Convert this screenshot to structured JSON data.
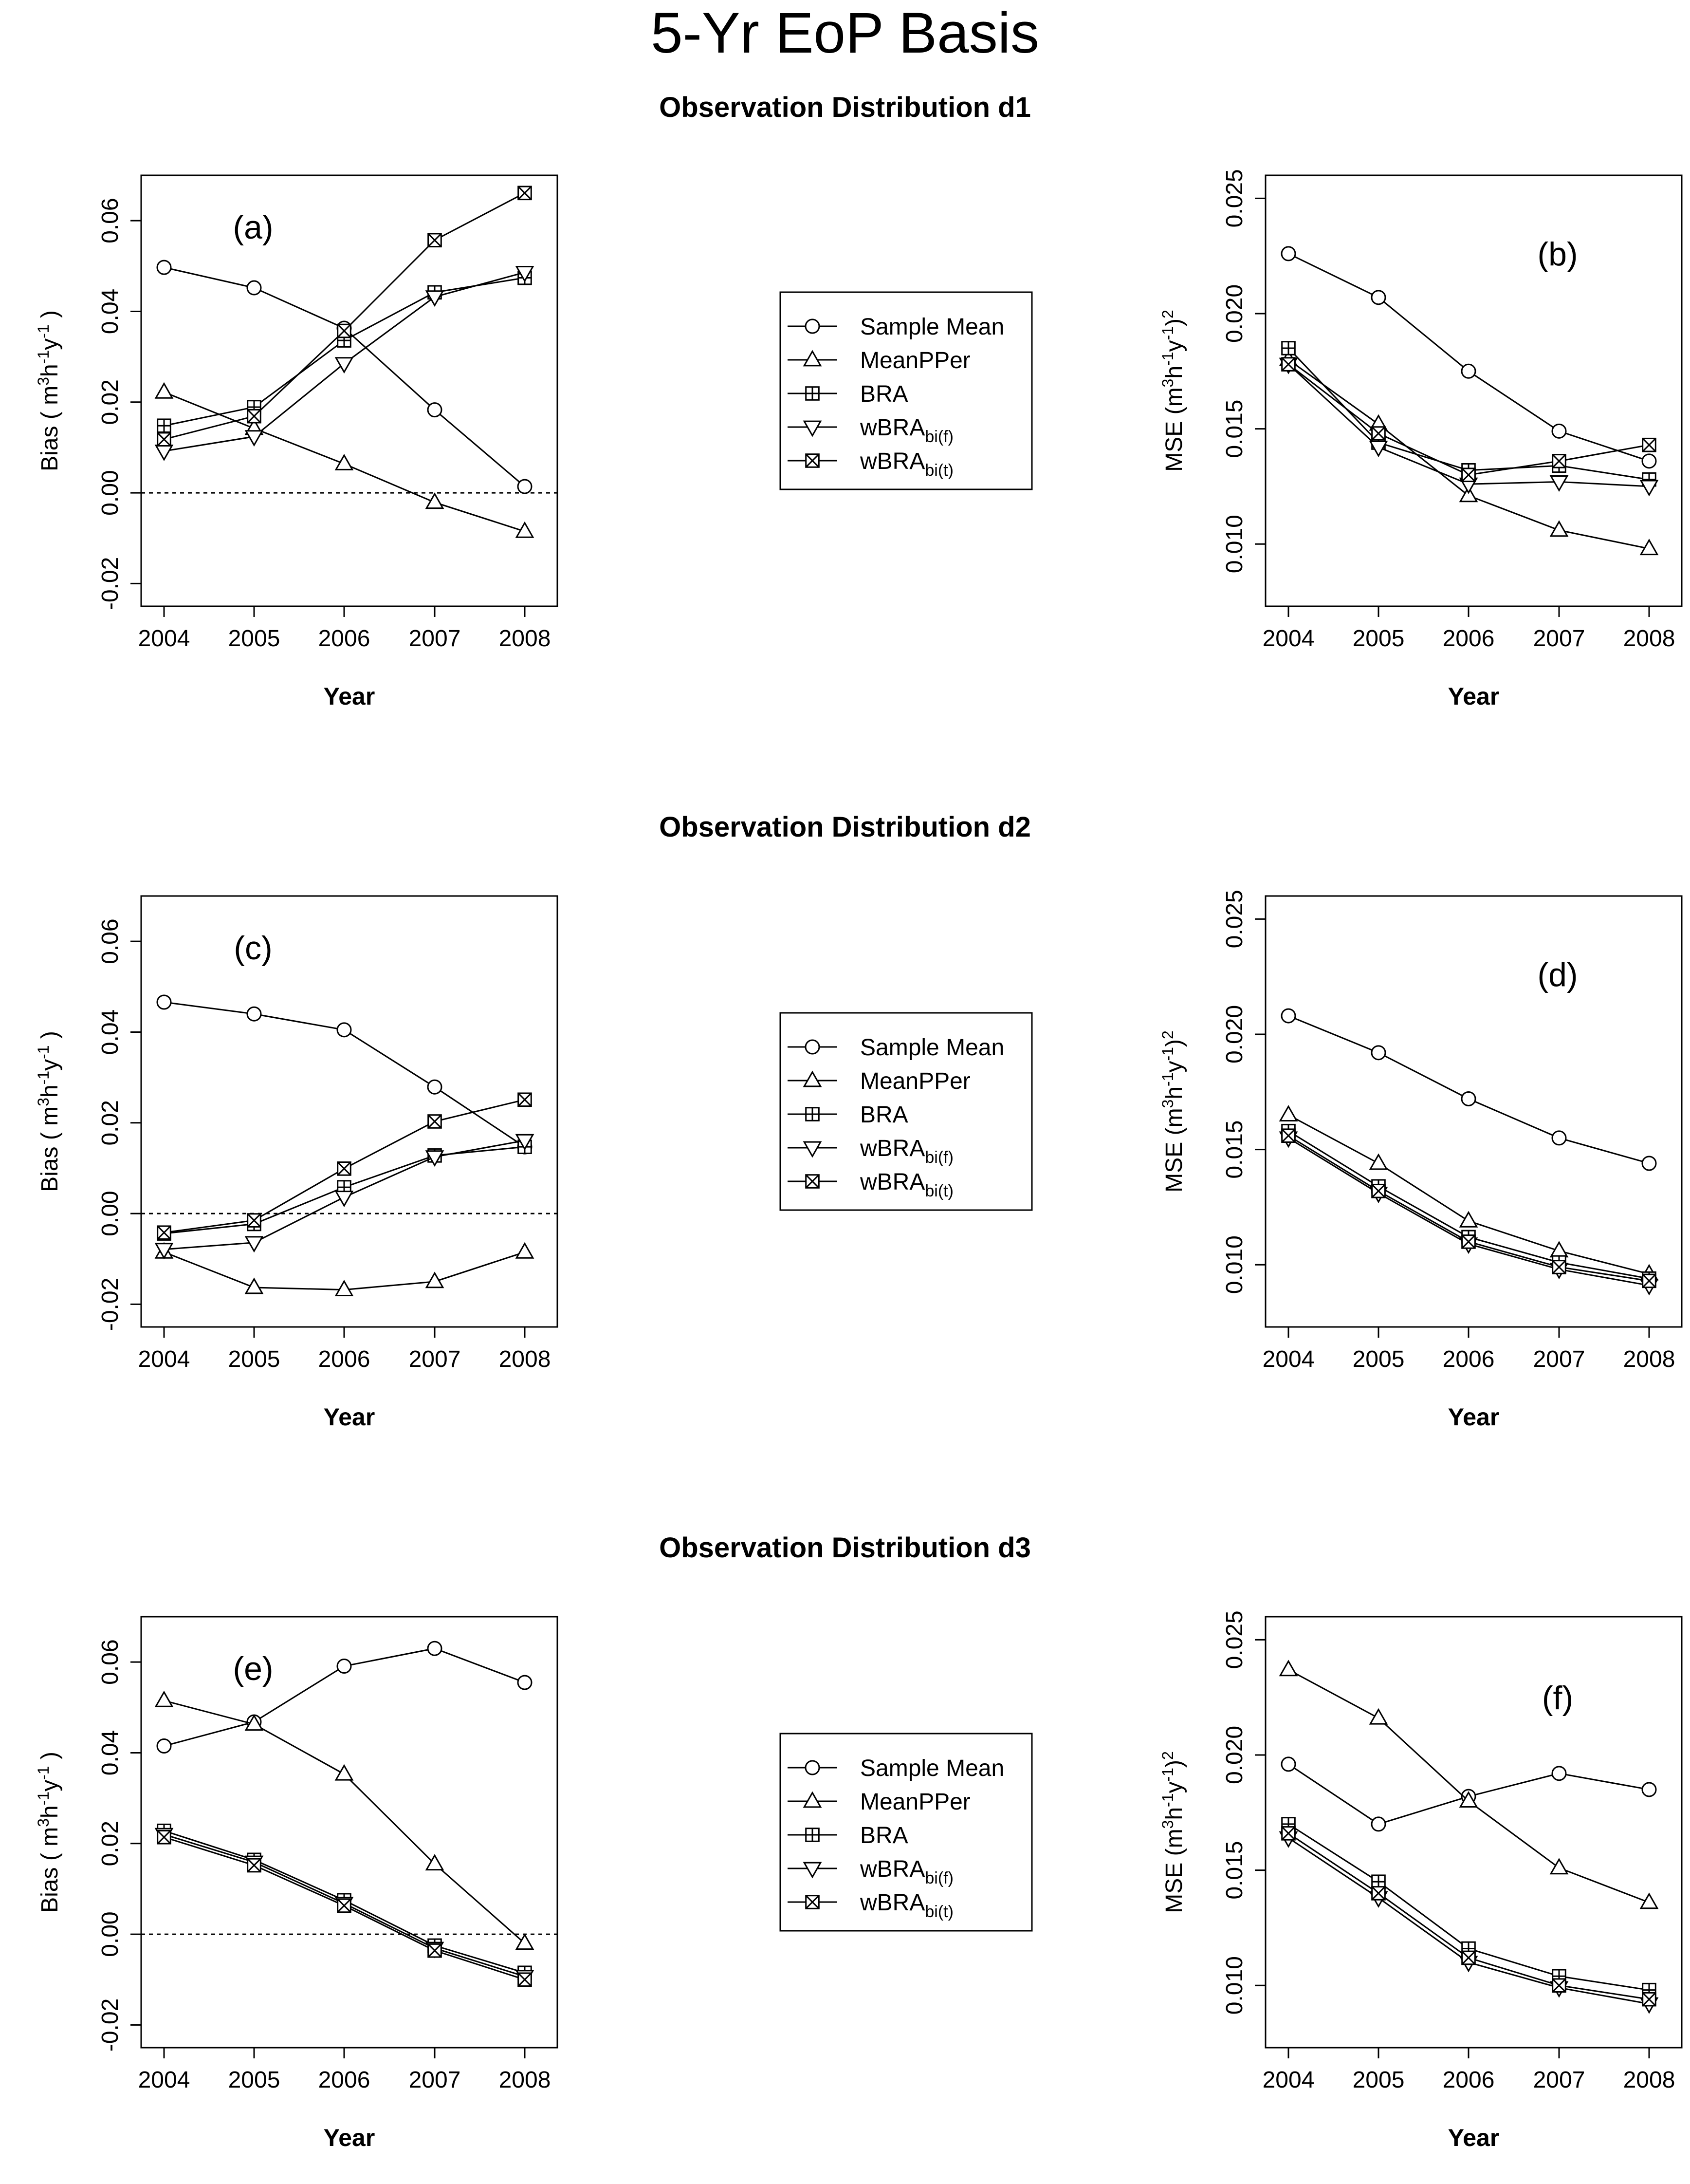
{
  "title": "5-Yr EoP Basis",
  "section_titles": [
    "Observation Distribution d1",
    "Observation Distribution d2",
    "Observation Distribution d3"
  ],
  "legend_entries": [
    {
      "label": "Sample Mean",
      "marker": "circle"
    },
    {
      "label": "MeanPPer",
      "marker": "triangle"
    },
    {
      "label": "BRA",
      "marker": "square-plus"
    },
    {
      "label": "wBRA",
      "sub": "bi(f)",
      "marker": "triangle-down"
    },
    {
      "label": "wBRA",
      "sub": "bi(t)",
      "marker": "square-x"
    }
  ],
  "chart_data": [
    {
      "id": "a",
      "panel_label": "(a)",
      "type": "line",
      "xlabel": "Year",
      "ylabel": "Bias ( m3h-1y-1 )",
      "ylim": [
        -0.025,
        0.07
      ],
      "yticks": [
        "-0.02",
        "0.00",
        "0.02",
        "0.04",
        "0.06"
      ],
      "zero_line": true,
      "categories": [
        "2004",
        "2005",
        "2006",
        "2007",
        "2008"
      ],
      "series": [
        {
          "name": "Sample Mean",
          "values": [
            0.0497,
            0.0452,
            0.0363,
            0.0183,
            0.0014
          ]
        },
        {
          "name": "MeanPPer",
          "values": [
            0.0222,
            0.0142,
            0.0064,
            -0.0021,
            -0.0085
          ]
        },
        {
          "name": "BRA",
          "values": [
            0.0148,
            0.0189,
            0.0336,
            0.0442,
            0.0474
          ]
        },
        {
          "name": "wBRA bi(f)",
          "values": [
            0.0092,
            0.0124,
            0.0285,
            0.0432,
            0.0486
          ]
        },
        {
          "name": "wBRA bi(t)",
          "values": [
            0.0118,
            0.0169,
            0.0357,
            0.0557,
            0.0661
          ]
        }
      ]
    },
    {
      "id": "b",
      "panel_label": "(b)",
      "type": "line",
      "xlabel": "Year",
      "ylabel": "MSE (m3h-1y-1)2",
      "ylim": [
        0.0073,
        0.026
      ],
      "yticks": [
        "0.010",
        "0.015",
        "0.020",
        "0.025"
      ],
      "zero_line": false,
      "categories": [
        "2004",
        "2005",
        "2006",
        "2007",
        "2008"
      ],
      "series": [
        {
          "name": "Sample Mean",
          "values": [
            0.0226,
            0.0207,
            0.0175,
            0.0149,
            0.0136
          ]
        },
        {
          "name": "MeanPPer",
          "values": [
            0.018,
            0.0152,
            0.0121,
            0.0106,
            0.0098
          ]
        },
        {
          "name": "BRA",
          "values": [
            0.0185,
            0.0144,
            0.0132,
            0.0134,
            0.0128
          ]
        },
        {
          "name": "wBRA bi(f)",
          "values": [
            0.0178,
            0.0142,
            0.0126,
            0.0127,
            0.0125
          ]
        },
        {
          "name": "wBRA bi(t)",
          "values": [
            0.0178,
            0.0148,
            0.013,
            0.0136,
            0.0143
          ]
        }
      ]
    },
    {
      "id": "c",
      "panel_label": "(c)",
      "type": "line",
      "xlabel": "Year",
      "ylabel": "Bias ( m3h-1y-1 )",
      "ylim": [
        -0.025,
        0.07
      ],
      "yticks": [
        "-0.02",
        "0.00",
        "0.02",
        "0.04",
        "0.06"
      ],
      "zero_line": true,
      "categories": [
        "2004",
        "2005",
        "2006",
        "2007",
        "2008"
      ],
      "series": [
        {
          "name": "Sample Mean",
          "values": [
            0.0466,
            0.044,
            0.0405,
            0.0279,
            0.0147
          ]
        },
        {
          "name": "MeanPPer",
          "values": [
            -0.0085,
            -0.0163,
            -0.0168,
            -0.015,
            -0.0085
          ]
        },
        {
          "name": "BRA",
          "values": [
            -0.0044,
            -0.0023,
            0.0058,
            0.0128,
            0.0147
          ]
        },
        {
          "name": "wBRA bi(f)",
          "values": [
            -0.0079,
            -0.0064,
            0.0036,
            0.0125,
            0.0161
          ]
        },
        {
          "name": "wBRA bi(t)",
          "values": [
            -0.0042,
            -0.0015,
            0.0099,
            0.0203,
            0.0251
          ]
        }
      ]
    },
    {
      "id": "d",
      "panel_label": "(d)",
      "type": "line",
      "xlabel": "Year",
      "ylabel": "MSE (m3h-1y-1)2",
      "ylim": [
        0.0073,
        0.026
      ],
      "yticks": [
        "0.010",
        "0.015",
        "0.020",
        "0.025"
      ],
      "zero_line": false,
      "categories": [
        "2004",
        "2005",
        "2006",
        "2007",
        "2008"
      ],
      "series": [
        {
          "name": "Sample Mean",
          "values": [
            0.0208,
            0.0192,
            0.0172,
            0.0155,
            0.0144
          ]
        },
        {
          "name": "MeanPPer",
          "values": [
            0.0165,
            0.0144,
            0.0119,
            0.0106,
            0.0096
          ]
        },
        {
          "name": "BRA",
          "values": [
            0.0158,
            0.0134,
            0.0112,
            0.0101,
            0.0094
          ]
        },
        {
          "name": "wBRA bi(f)",
          "values": [
            0.0155,
            0.0131,
            0.0109,
            0.0098,
            0.0091
          ]
        },
        {
          "name": "wBRA bi(t)",
          "values": [
            0.0156,
            0.0132,
            0.011,
            0.0099,
            0.0093
          ]
        }
      ]
    },
    {
      "id": "e",
      "panel_label": "(e)",
      "type": "line",
      "xlabel": "Year",
      "ylabel": "Bias ( m3h-1y-1 )",
      "ylim": [
        -0.025,
        0.07
      ],
      "yticks": [
        "-0.02",
        "0.00",
        "0.02",
        "0.04",
        "0.06"
      ],
      "zero_line": true,
      "categories": [
        "2004",
        "2005",
        "2006",
        "2007",
        "2008"
      ],
      "series": [
        {
          "name": "Sample Mean",
          "values": [
            0.0415,
            0.0468,
            0.0591,
            0.063,
            0.0555
          ]
        },
        {
          "name": "MeanPPer",
          "values": [
            0.0515,
            0.0463,
            0.0353,
            0.0155,
            -0.002
          ]
        },
        {
          "name": "BRA",
          "values": [
            0.0228,
            0.0164,
            0.0075,
            -0.0025,
            -0.0085
          ]
        },
        {
          "name": "wBRA bi(f)",
          "values": [
            0.022,
            0.0159,
            0.0068,
            -0.0031,
            -0.0093
          ]
        },
        {
          "name": "wBRA bi(t)",
          "values": [
            0.0214,
            0.0152,
            0.0063,
            -0.0036,
            -0.01
          ]
        }
      ]
    },
    {
      "id": "f",
      "panel_label": "(f)",
      "type": "line",
      "xlabel": "Year",
      "ylabel": "MSE (m3h-1y-1)2",
      "ylim": [
        0.0073,
        0.026
      ],
      "yticks": [
        "0.010",
        "0.015",
        "0.020",
        "0.025"
      ],
      "zero_line": false,
      "categories": [
        "2004",
        "2005",
        "2006",
        "2007",
        "2008"
      ],
      "series": [
        {
          "name": "Sample Mean",
          "values": [
            0.0196,
            0.017,
            0.0182,
            0.0192,
            0.0185
          ]
        },
        {
          "name": "MeanPPer",
          "values": [
            0.0237,
            0.0216,
            0.018,
            0.0151,
            0.0136
          ]
        },
        {
          "name": "BRA",
          "values": [
            0.017,
            0.0145,
            0.0116,
            0.0104,
            0.0098
          ]
        },
        {
          "name": "wBRA bi(f)",
          "values": [
            0.0164,
            0.0138,
            0.011,
            0.0099,
            0.0092
          ]
        },
        {
          "name": "wBRA bi(t)",
          "values": [
            0.0166,
            0.014,
            0.0112,
            0.01,
            0.0094
          ]
        }
      ]
    }
  ]
}
